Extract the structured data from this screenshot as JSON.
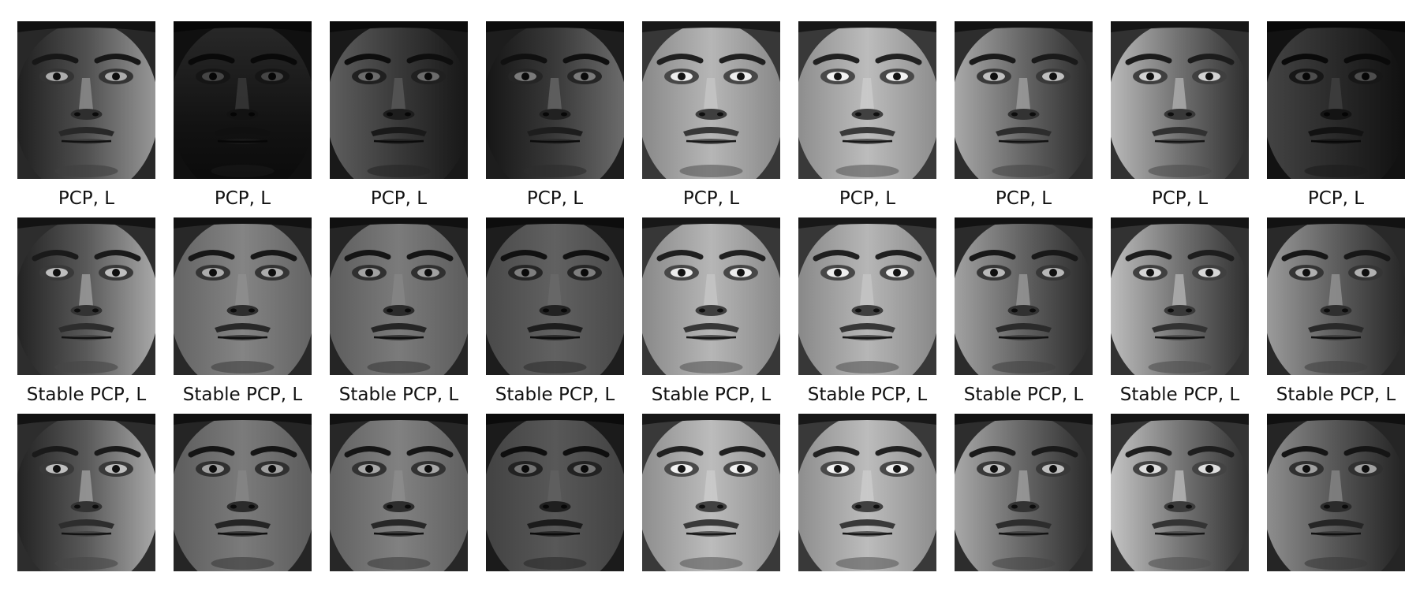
{
  "rows": [
    {
      "caption": "",
      "images": [
        {
          "subject": "face",
          "lighting": "lit from right, left half in shadow",
          "brightness": 0.45,
          "light": "right"
        },
        {
          "subject": "face",
          "lighting": "top light, mostly dark",
          "brightness": 0.18,
          "light": "top"
        },
        {
          "subject": "face",
          "lighting": "top-left light, dark",
          "brightness": 0.28,
          "light": "left"
        },
        {
          "subject": "face",
          "lighting": "lit from right, dark",
          "brightness": 0.32,
          "light": "right"
        },
        {
          "subject": "face",
          "lighting": "frontal, even",
          "brightness": 0.62,
          "light": "front"
        },
        {
          "subject": "face",
          "lighting": "frontal, even",
          "brightness": 0.64,
          "light": "front"
        },
        {
          "subject": "face",
          "lighting": "lit from left, right half in shadow",
          "brightness": 0.5,
          "light": "left"
        },
        {
          "subject": "face",
          "lighting": "lit from left",
          "brightness": 0.55,
          "light": "left"
        },
        {
          "subject": "face",
          "lighting": "side light, very dark",
          "brightness": 0.2,
          "light": "left"
        }
      ]
    },
    {
      "caption": "PCP, L",
      "images": [
        {
          "subject": "face",
          "lighting": "recovered, lit from right",
          "brightness": 0.5,
          "light": "right"
        },
        {
          "subject": "face",
          "lighting": "recovered, even",
          "brightness": 0.45,
          "light": "front"
        },
        {
          "subject": "face",
          "lighting": "recovered, even",
          "brightness": 0.42,
          "light": "front"
        },
        {
          "subject": "face",
          "lighting": "recovered, dark",
          "brightness": 0.33,
          "light": "front"
        },
        {
          "subject": "face",
          "lighting": "recovered, frontal",
          "brightness": 0.62,
          "light": "front"
        },
        {
          "subject": "face",
          "lighting": "recovered, frontal",
          "brightness": 0.62,
          "light": "front"
        },
        {
          "subject": "face",
          "lighting": "recovered, lit from left",
          "brightness": 0.48,
          "light": "left"
        },
        {
          "subject": "face",
          "lighting": "recovered, lit from left",
          "brightness": 0.56,
          "light": "left"
        },
        {
          "subject": "face",
          "lighting": "recovered, lit from left",
          "brightness": 0.46,
          "light": "left"
        }
      ]
    },
    {
      "caption": "Stable PCP, L",
      "images": [
        {
          "subject": "face",
          "lighting": "recovered, lit from right",
          "brightness": 0.5,
          "light": "right"
        },
        {
          "subject": "face",
          "lighting": "recovered, even",
          "brightness": 0.42,
          "light": "front"
        },
        {
          "subject": "face",
          "lighting": "recovered, even",
          "brightness": 0.44,
          "light": "front"
        },
        {
          "subject": "face",
          "lighting": "recovered, dark",
          "brightness": 0.3,
          "light": "front"
        },
        {
          "subject": "face",
          "lighting": "recovered, frontal",
          "brightness": 0.64,
          "light": "front"
        },
        {
          "subject": "face",
          "lighting": "recovered, frontal",
          "brightness": 0.64,
          "light": "front"
        },
        {
          "subject": "face",
          "lighting": "recovered, lit from left",
          "brightness": 0.5,
          "light": "left"
        },
        {
          "subject": "face",
          "lighting": "recovered, lit from left",
          "brightness": 0.58,
          "light": "left"
        },
        {
          "subject": "face",
          "lighting": "recovered, lit from left",
          "brightness": 0.42,
          "light": "left"
        }
      ]
    }
  ]
}
